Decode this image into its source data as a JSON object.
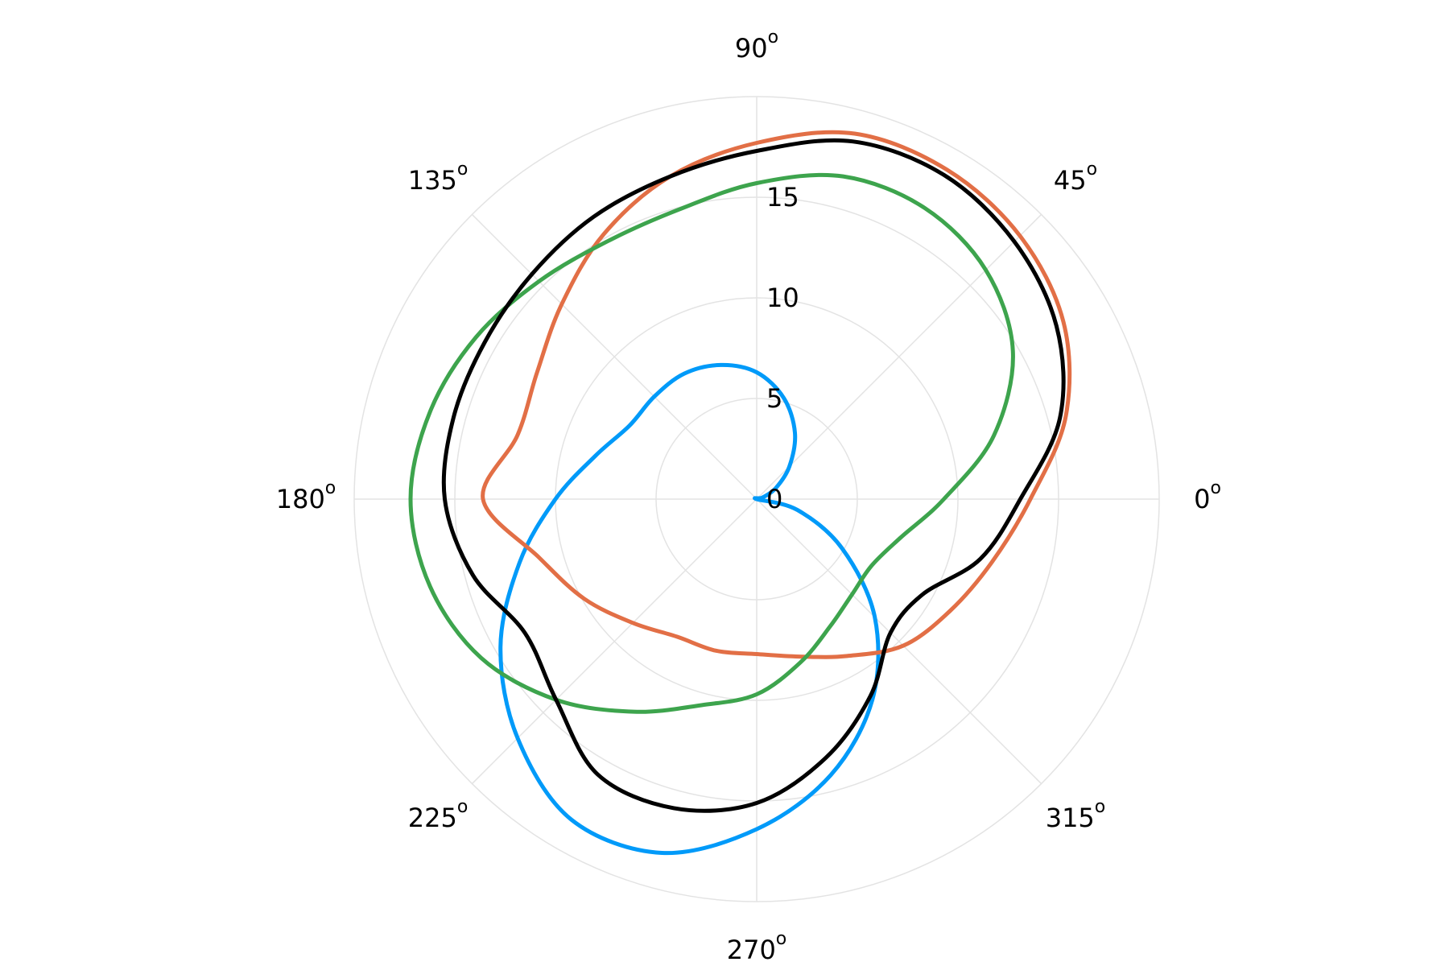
{
  "chart_data": {
    "type": "line",
    "projection": "polar",
    "title": "",
    "radial_axis": {
      "range": [
        0,
        20
      ],
      "ticks": [
        0,
        5,
        10,
        15
      ],
      "tick_labels": [
        "0",
        "5",
        "10",
        "15"
      ],
      "label_angle_deg": 90
    },
    "angular_axis": {
      "unit": "degrees",
      "ticks": [
        0,
        45,
        90,
        135,
        180,
        225,
        270,
        315
      ],
      "tick_labels": [
        {
          "value": "0",
          "sup": "o"
        },
        {
          "value": "45",
          "sup": "o"
        },
        {
          "value": "90",
          "sup": "o"
        },
        {
          "value": "135",
          "sup": "o"
        },
        {
          "value": "180",
          "sup": "o"
        },
        {
          "value": "225",
          "sup": "o"
        },
        {
          "value": "270",
          "sup": "o"
        },
        {
          "value": "315",
          "sup": "o"
        }
      ]
    },
    "grid": true,
    "legend": false,
    "series": [
      {
        "color": "#009af9",
        "theta_deg": [
          0,
          15,
          30,
          45,
          60,
          75,
          90,
          105,
          120,
          135,
          150,
          165,
          180,
          195,
          210,
          225,
          240,
          255,
          270,
          285,
          300,
          315,
          330,
          345,
          360
        ],
        "r": [
          0.0,
          0.3,
          1.1,
          2.3,
          3.8,
          5.2,
          6.3,
          6.9,
          7.2,
          7.2,
          7.3,
          8.3,
          10.0,
          12.2,
          14.7,
          16.8,
          18.4,
          18.2,
          16.4,
          14.2,
          11.5,
          8.3,
          4.9,
          2.1,
          0.0
        ]
      },
      {
        "color": "#e26f46",
        "theta_deg": [
          0,
          15,
          30,
          45,
          60,
          75,
          90,
          105,
          120,
          135,
          150,
          165,
          180,
          195,
          210,
          225,
          240,
          255,
          270,
          285,
          300,
          315,
          330,
          345,
          360
        ],
        "r": [
          13.6,
          15.9,
          17.6,
          18.5,
          18.9,
          18.8,
          17.7,
          16.6,
          15.2,
          13.7,
          12.6,
          12.3,
          13.6,
          11.2,
          9.9,
          8.7,
          7.9,
          7.8,
          7.7,
          8.1,
          9.0,
          10.3,
          11.1,
          12.1,
          13.6
        ]
      },
      {
        "color": "#3da44d",
        "theta_deg": [
          0,
          15,
          30,
          45,
          60,
          75,
          90,
          105,
          120,
          135,
          150,
          165,
          180,
          195,
          210,
          225,
          240,
          255,
          270,
          285,
          300,
          315,
          330,
          345,
          360
        ],
        "r": [
          9.3,
          12.2,
          14.7,
          16.1,
          16.7,
          16.6,
          15.7,
          14.9,
          14.8,
          15.3,
          16.1,
          16.8,
          17.2,
          16.8,
          15.8,
          14.1,
          12.2,
          10.6,
          9.7,
          8.4,
          7.3,
          6.7,
          6.6,
          7.4,
          9.3
        ]
      },
      {
        "color": "#000000",
        "theta_deg": [
          0,
          15,
          30,
          45,
          60,
          75,
          90,
          105,
          120,
          135,
          150,
          165,
          180,
          195,
          210,
          225,
          240,
          255,
          270,
          285,
          300,
          315,
          330,
          345,
          360
        ],
        "r": [
          13.1,
          15.6,
          17.2,
          18.1,
          18.6,
          18.4,
          17.3,
          16.6,
          16.2,
          15.8,
          15.6,
          15.6,
          15.5,
          14.6,
          13.3,
          14.1,
          15.8,
          15.9,
          15.1,
          13.3,
          11.3,
          9.4,
          9.5,
          11.5,
          13.1
        ]
      }
    ]
  }
}
